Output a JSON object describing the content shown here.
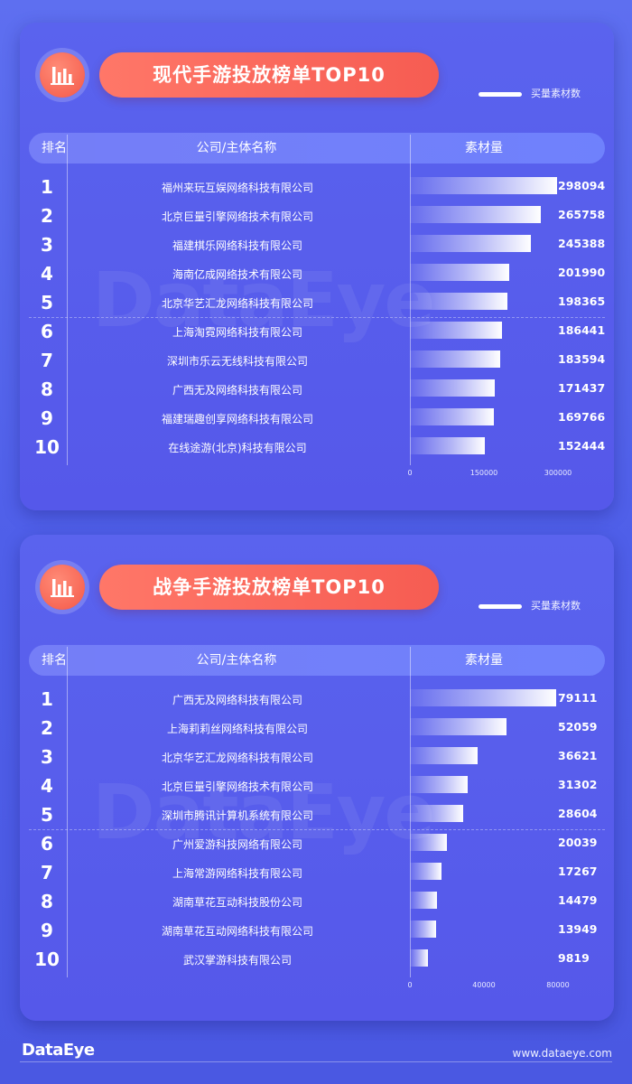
{
  "footer": {
    "logo": "DataEye",
    "url": "www.dataeye.com"
  },
  "watermark": "DataEye",
  "charts": [
    {
      "title": "现代手游投放榜单TOP10",
      "legend_label": "买量素材数",
      "header": {
        "rank": "排名",
        "company": "公司/主体名称",
        "material": "素材量"
      },
      "icon": "bar-chart-icon"
    },
    {
      "title": "战争手游投放榜单TOP10",
      "legend_label": "买量素材数",
      "header": {
        "rank": "排名",
        "company": "公司/主体名称",
        "material": "素材量"
      },
      "icon": "bar-chart-icon"
    }
  ],
  "chart_data": [
    {
      "type": "bar",
      "title": "现代手游投放榜单TOP10",
      "series_name": "买量素材数",
      "ranks": [
        "1",
        "2",
        "3",
        "4",
        "5",
        "6",
        "7",
        "8",
        "9",
        "10"
      ],
      "categories": [
        "福州来玩互娱网络科技有限公司",
        "北京巨量引擎网络技术有限公司",
        "福建棋乐网络科技有限公司",
        "海南亿成网络技术有限公司",
        "北京华艺汇龙网络科技有限公司",
        "上海淘霓网络科技有限公司",
        "深圳市乐云无线科技有限公司",
        "广西无及网络科技有限公司",
        "福建瑞趣创享网络科技有限公司",
        "在线途游(北京)科技有限公司"
      ],
      "values": [
        298094,
        265758,
        245388,
        201990,
        198365,
        186441,
        183594,
        171437,
        169766,
        152444
      ],
      "xlim": [
        0,
        300000
      ],
      "xticks": [
        "0",
        "150000",
        "300000"
      ],
      "xtick_values": [
        0,
        150000,
        300000
      ]
    },
    {
      "type": "bar",
      "title": "战争手游投放榜单TOP10",
      "series_name": "买量素材数",
      "ranks": [
        "1",
        "2",
        "3",
        "4",
        "5",
        "6",
        "7",
        "8",
        "9",
        "10"
      ],
      "categories": [
        "广西无及网络科技有限公司",
        "上海莉莉丝网络科技有限公司",
        "北京华艺汇龙网络科技有限公司",
        "北京巨量引擎网络技术有限公司",
        "深圳市腾讯计算机系统有限公司",
        "广州爱游科技网络有限公司",
        "上海常游网络科技有限公司",
        "湖南草花互动科技股份公司",
        "湖南草花互动网络科技有限公司",
        "武汉掌游科技有限公司"
      ],
      "values": [
        79111,
        52059,
        36621,
        31302,
        28604,
        20039,
        17267,
        14479,
        13949,
        9819
      ],
      "xlim": [
        0,
        80000
      ],
      "xticks": [
        "0",
        "40000",
        "80000"
      ],
      "xtick_values": [
        0,
        40000,
        80000
      ]
    }
  ]
}
